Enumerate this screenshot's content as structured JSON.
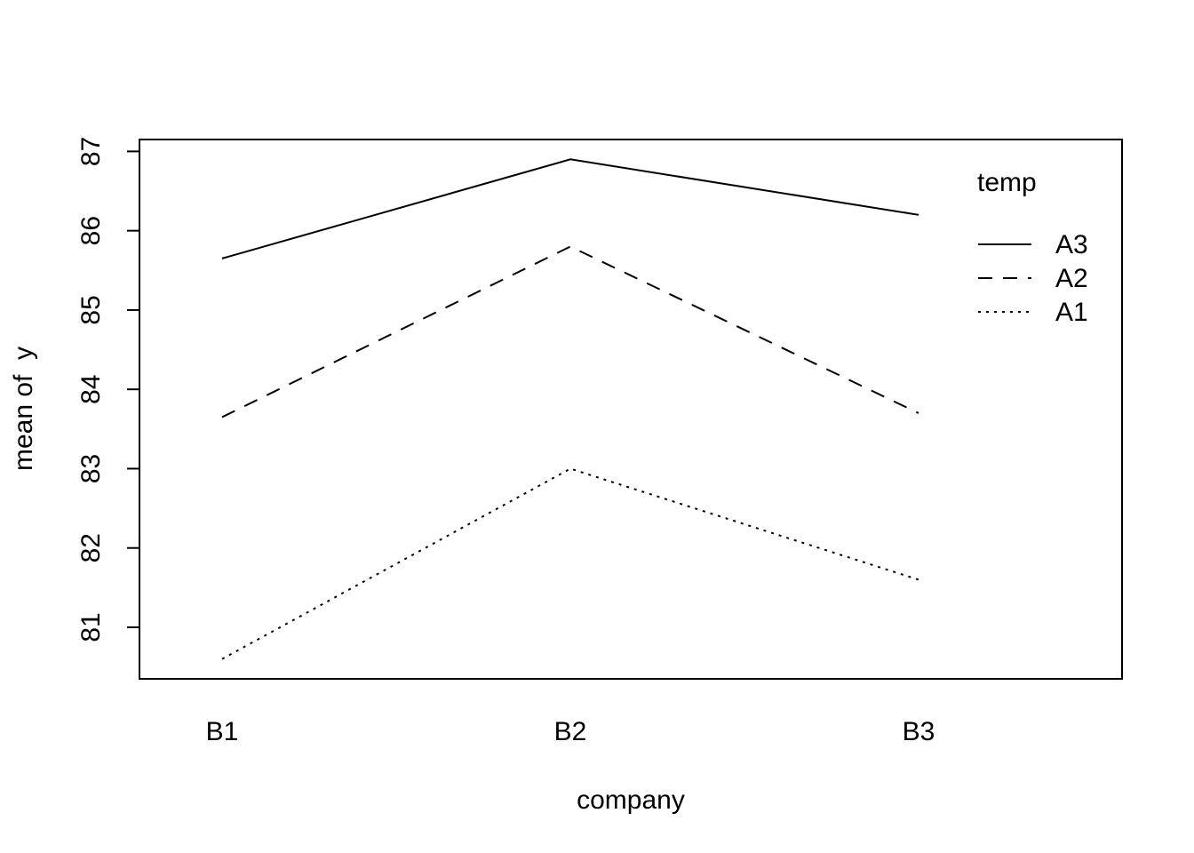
{
  "chart_data": {
    "type": "line",
    "categories": [
      "B1",
      "B2",
      "B3"
    ],
    "series": [
      {
        "name": "A3",
        "values": [
          85.65,
          86.9,
          86.2
        ],
        "line_style": "solid"
      },
      {
        "name": "A2",
        "values": [
          83.65,
          85.8,
          83.7
        ],
        "line_style": "dashed"
      },
      {
        "name": "A1",
        "values": [
          80.6,
          83.0,
          81.6
        ],
        "line_style": "dotted"
      }
    ],
    "xlabel": "company",
    "ylabel": "mean of  y",
    "ylim": [
      80.35,
      87.15
    ],
    "yticks": [
      "81",
      "82",
      "83",
      "84",
      "85",
      "86",
      "87"
    ],
    "legend_title": "temp",
    "legend_position": "top-right",
    "grid": false,
    "line_color": "#000000"
  }
}
